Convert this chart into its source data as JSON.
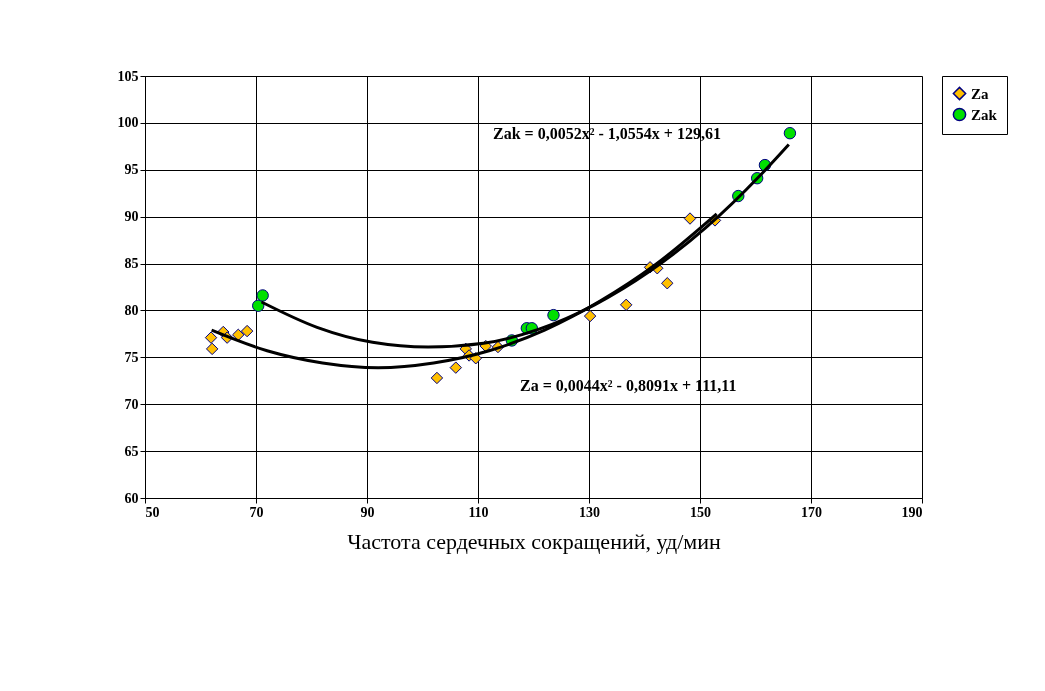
{
  "chart_data": {
    "type": "scatter",
    "xlabel": "Частота сердечных сокращений, уд/мин",
    "xlim": [
      50,
      190
    ],
    "xticks": [
      50,
      70,
      90,
      110,
      130,
      150,
      170,
      190
    ],
    "ylim": [
      60,
      105
    ],
    "yticks": [
      60,
      65,
      70,
      75,
      80,
      85,
      90,
      95,
      100,
      105
    ],
    "grid": true,
    "legend": "right",
    "annotations": [
      "Zak = 0,0052x² - 1,0554x + 129,61",
      "Za = 0,0044x² - 0,8091x + 111,11"
    ],
    "series": [
      {
        "name": "Za",
        "marker": "diamond",
        "color": "#ffc000",
        "x": [
          61.9,
          62.1,
          64.1,
          64.8,
          66.8,
          68.4,
          102.6,
          106.0,
          107.8,
          108.4,
          109.6,
          111.4,
          113.6,
          130.2,
          136.7,
          141.0,
          142.3,
          144.1,
          148.2,
          152.7
        ],
        "values": [
          77.1,
          75.9,
          77.7,
          77.1,
          77.4,
          77.8,
          72.8,
          73.9,
          75.9,
          75.2,
          74.9,
          76.2,
          76.1,
          79.4,
          80.6,
          84.6,
          84.5,
          82.9,
          89.8,
          89.6
        ]
      },
      {
        "name": "Zak",
        "marker": "circle",
        "color": "#00e000",
        "x": [
          70.4,
          71.2,
          116.1,
          118.8,
          119.7,
          123.6,
          156.9,
          160.3,
          161.7,
          166.2
        ],
        "values": [
          80.5,
          81.6,
          76.8,
          78.1,
          78.1,
          79.5,
          92.2,
          94.1,
          95.5,
          98.9
        ]
      },
      {
        "type": "line",
        "color": "#000000",
        "line_style": "solid",
        "x": [
          62,
          72,
          82,
          92,
          102,
          112,
          122,
          132,
          142,
          153
        ],
        "values": [
          77.9,
          75.7,
          74.4,
          73.9,
          74.4,
          75.7,
          77.9,
          81.0,
          84.9,
          90.3
        ]
      },
      {
        "type": "line",
        "color": "#000000",
        "line_style": "solid",
        "x": [
          71,
          81,
          91,
          101,
          111,
          121,
          131,
          141,
          151,
          161,
          166
        ],
        "values": [
          80.9,
          78.2,
          76.6,
          76.1,
          76.5,
          78.0,
          80.6,
          84.2,
          88.8,
          94.5,
          97.7
        ]
      }
    ]
  }
}
